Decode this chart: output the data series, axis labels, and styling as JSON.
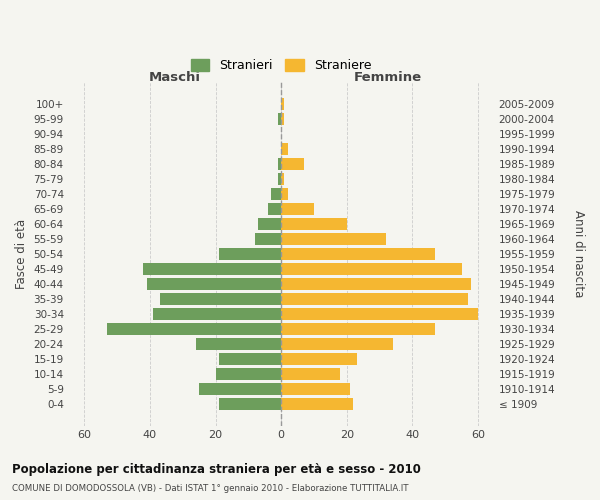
{
  "age_groups": [
    "100+",
    "95-99",
    "90-94",
    "85-89",
    "80-84",
    "75-79",
    "70-74",
    "65-69",
    "60-64",
    "55-59",
    "50-54",
    "45-49",
    "40-44",
    "35-39",
    "30-34",
    "25-29",
    "20-24",
    "15-19",
    "10-14",
    "5-9",
    "0-4"
  ],
  "birth_years": [
    "≤ 1909",
    "1910-1914",
    "1915-1919",
    "1920-1924",
    "1925-1929",
    "1930-1934",
    "1935-1939",
    "1940-1944",
    "1945-1949",
    "1950-1954",
    "1955-1959",
    "1960-1964",
    "1965-1969",
    "1970-1974",
    "1975-1979",
    "1980-1984",
    "1985-1989",
    "1990-1994",
    "1995-1999",
    "2000-2004",
    "2005-2009"
  ],
  "males": [
    0,
    1,
    0,
    0,
    1,
    1,
    3,
    4,
    7,
    8,
    19,
    42,
    41,
    37,
    39,
    53,
    26,
    19,
    20,
    25,
    19
  ],
  "females": [
    1,
    1,
    0,
    2,
    7,
    1,
    2,
    10,
    20,
    32,
    47,
    55,
    58,
    57,
    60,
    47,
    34,
    23,
    18,
    21,
    22
  ],
  "male_color": "#6d9e5c",
  "female_color": "#f5b731",
  "background_color": "#f5f5f0",
  "grid_color": "#cccccc",
  "title": "Popolazione per cittadinanza straniera per età e sesso - 2010",
  "subtitle": "COMUNE DI DOMODOSSOLA (VB) - Dati ISTAT 1° gennaio 2010 - Elaborazione TUTTITALIA.IT",
  "ylabel_left": "Fasce di età",
  "ylabel_right": "Anni di nascita",
  "xlabel_left": "Maschi",
  "xlabel_top": "Femmine",
  "legend_stranieri": "Stranieri",
  "legend_straniere": "Straniere",
  "xlim": 65
}
